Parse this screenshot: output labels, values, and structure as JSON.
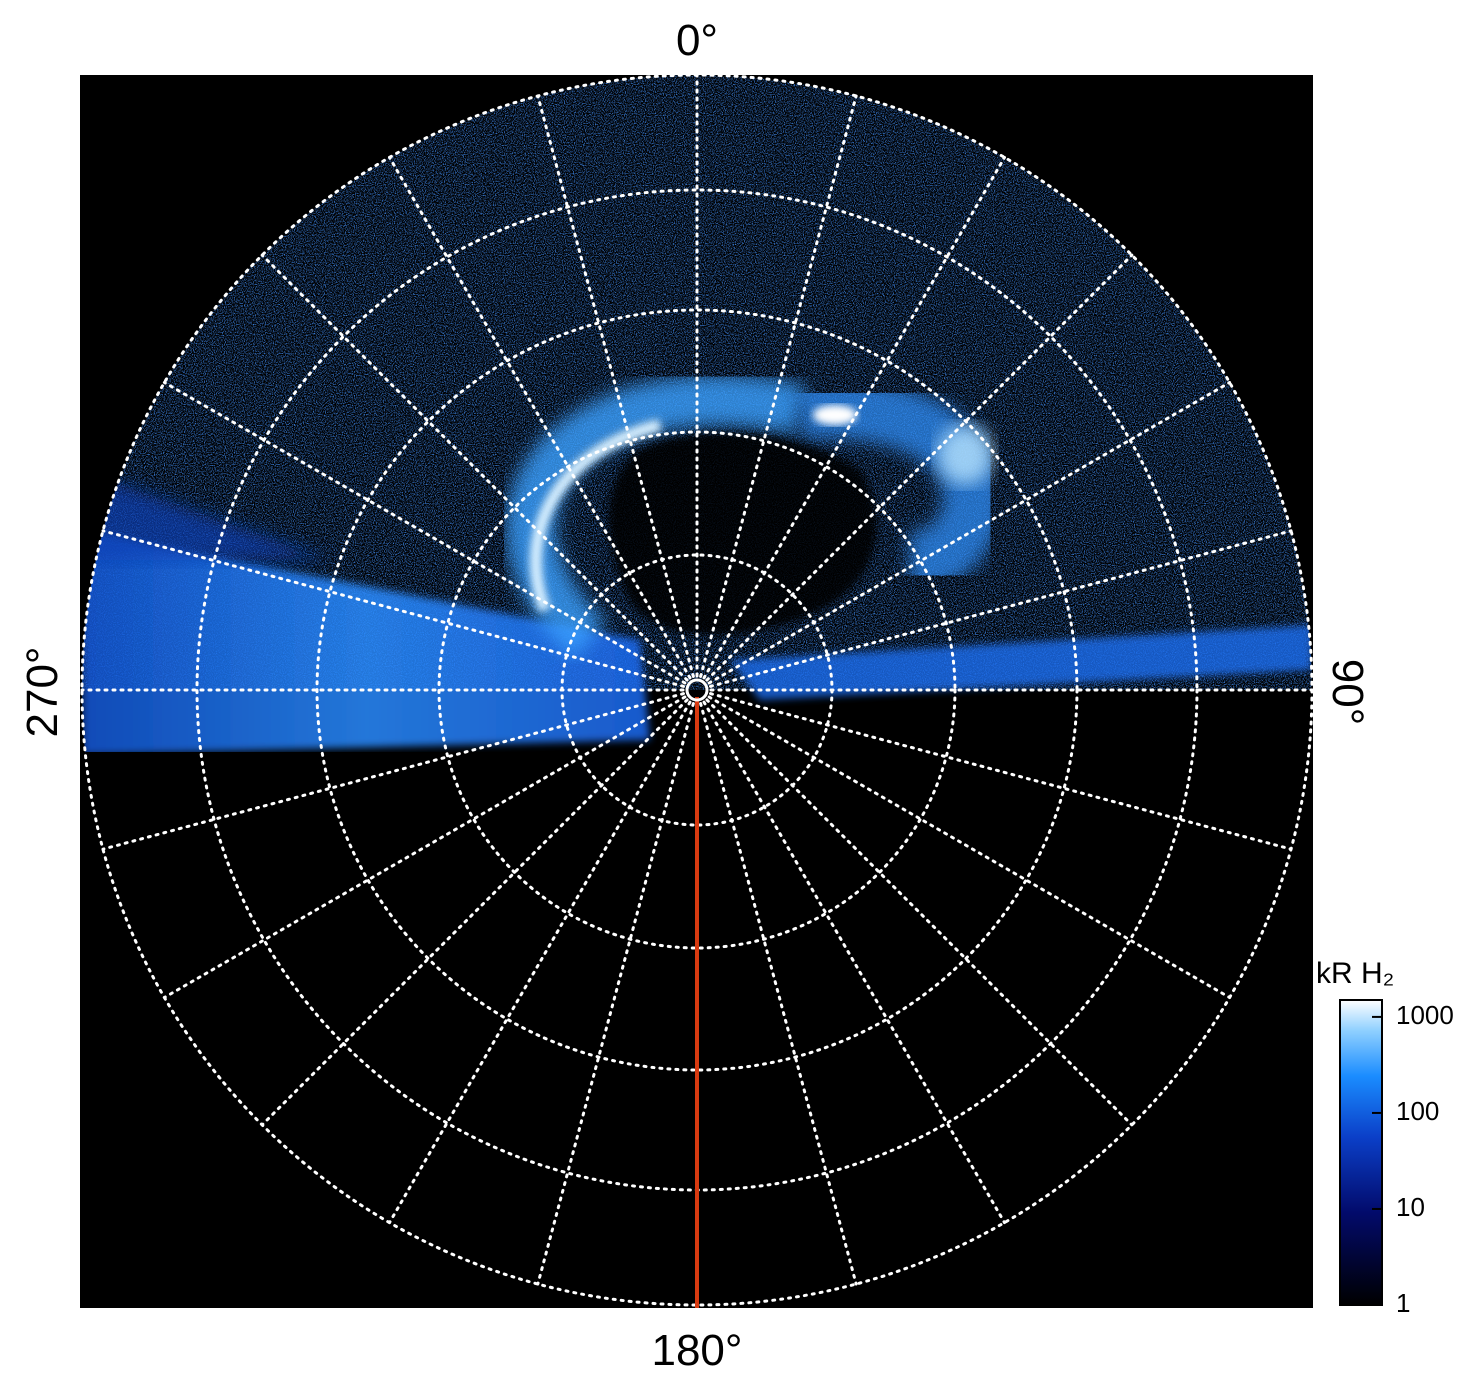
{
  "axis_labels": {
    "top": "0°",
    "right": "90°",
    "bottom": "180°",
    "left": "270°"
  },
  "colorbar": {
    "title": "kR H₂",
    "scale": "log",
    "lim": [
      1,
      1500
    ],
    "ticks": [
      1,
      10,
      100,
      1000
    ]
  }
}
